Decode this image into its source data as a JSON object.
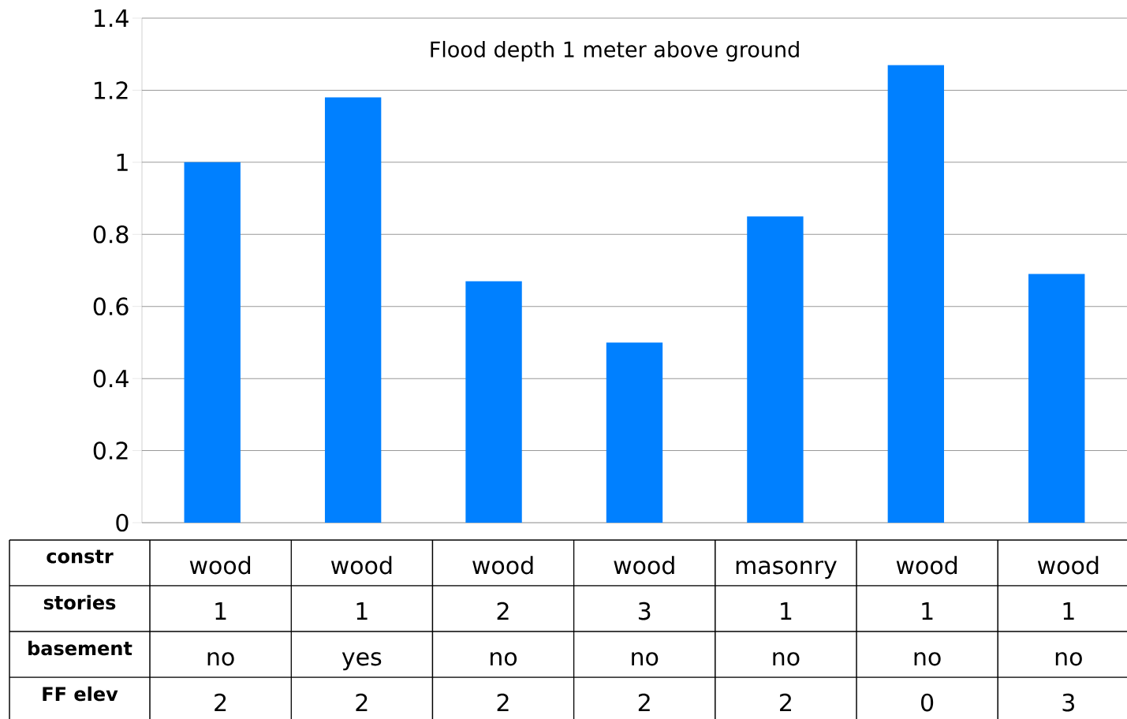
{
  "chart_data": {
    "type": "bar",
    "title": "Flood depth 1 meter above ground",
    "categories": [
      "wood",
      "wood",
      "wood",
      "wood",
      "masonry",
      "wood",
      "wood"
    ],
    "values": [
      1.0,
      1.18,
      0.67,
      0.5,
      0.85,
      1.27,
      0.69
    ],
    "color": "#0080ff",
    "ylim": [
      0,
      1.4
    ],
    "yticks": [
      0,
      0.2,
      0.4,
      0.6,
      0.8,
      1,
      1.2,
      1.4
    ],
    "grid": "y",
    "annotations": [
      "constr",
      "stories",
      "1",
      "1",
      "2",
      "3",
      "1",
      "1",
      "1",
      "basement",
      "no",
      "yes",
      "no",
      "no",
      "no",
      "no",
      "no",
      "FF elev",
      "2",
      "2",
      "2",
      "2",
      "2",
      "0",
      "3"
    ]
  }
}
